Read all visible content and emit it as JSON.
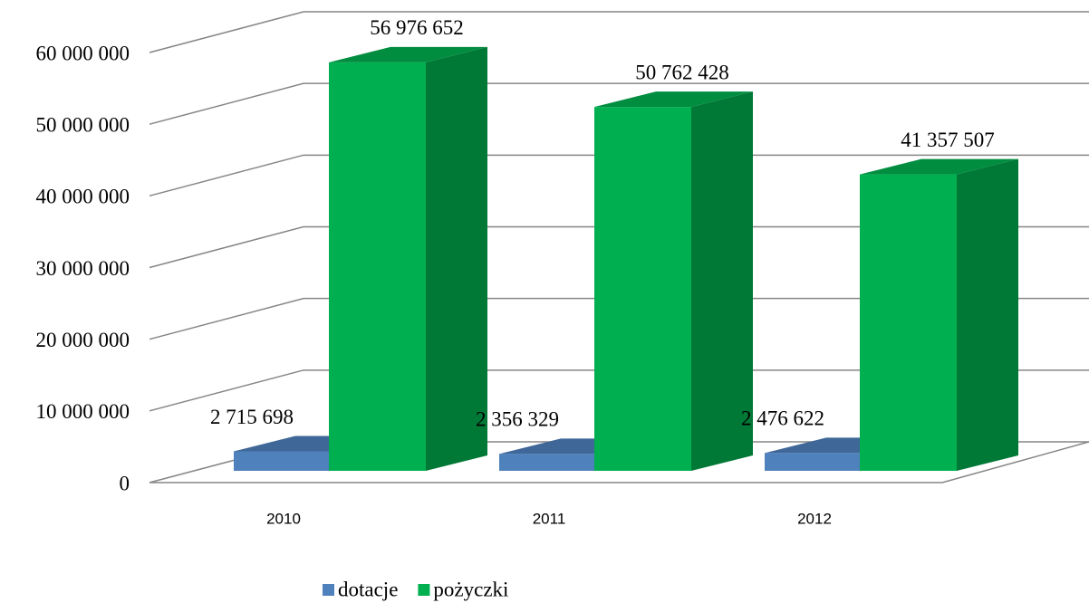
{
  "chart_data": {
    "type": "bar3d",
    "categories": [
      "2010",
      "2011",
      "2012"
    ],
    "series": [
      {
        "name": "dotacje",
        "color": "#4f81bd",
        "values": [
          2715698,
          2356329,
          2476622
        ],
        "value_labels": [
          "2 715 698",
          "2 356 329",
          "2 476 622"
        ]
      },
      {
        "name": "pożyczki",
        "color": "#00b050",
        "values": [
          56976652,
          50762428,
          41357507
        ],
        "value_labels": [
          "56 976 652",
          "50 762 428",
          "41 357 507"
        ]
      }
    ],
    "ylim": [
      0,
      60000000
    ],
    "yticks": [
      0,
      {
        "value": 10000000,
        "label": "10 000 000"
      },
      {
        "value": 20000000,
        "label": "20 000 000"
      },
      {
        "value": 30000000,
        "label": "30 000 000"
      },
      {
        "value": 40000000,
        "label": "40 000 000"
      },
      {
        "value": 50000000,
        "label": "50 000 000"
      },
      {
        "value": 60000000,
        "label": "60 000 000"
      }
    ],
    "grid": true,
    "legend": "bottom"
  }
}
